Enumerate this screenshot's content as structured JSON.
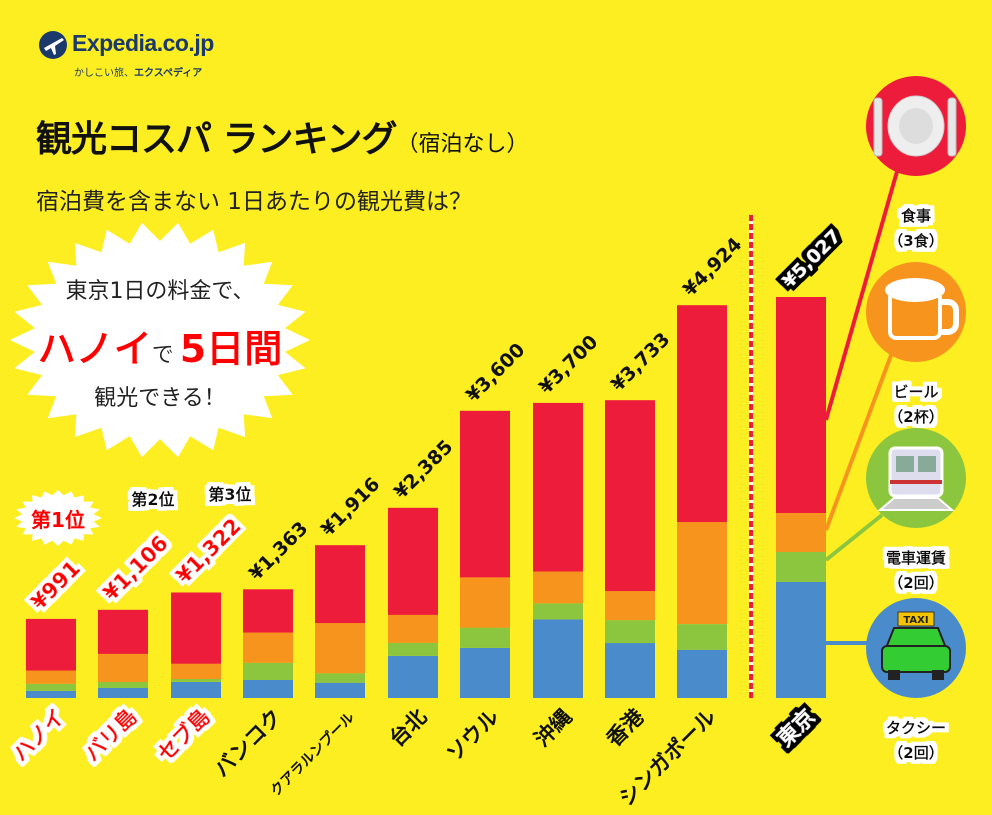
{
  "logo": {
    "brand": "Expedia.co.jp",
    "tagline_a": "かしこい旅、",
    "tagline_b": "エクスペディア"
  },
  "title": {
    "main": "観光コスパ ランキング",
    "suffix": "（宿泊なし）"
  },
  "subtitle": "宿泊費を含まない 1日あたりの観光費は？",
  "callout": {
    "line1": "東京1日の料金で、",
    "line2_a": "ハノイ",
    "line2_b": "で",
    "line2_c": "5日間",
    "line3": "観光できる！"
  },
  "ranks": [
    "第1位",
    "第2位",
    "第3位"
  ],
  "colors": {
    "background": "#fcee21",
    "food": "#ed1c3a",
    "beer": "#f7941d",
    "train": "#8cc63f",
    "taxi": "#4a8ccb",
    "highlight": "#ff0000"
  },
  "legend": [
    {
      "label": "食事",
      "detail": "（3食）",
      "icon": "plate-fork-knife-icon",
      "color": "#ed1c3a"
    },
    {
      "label": "ビール",
      "detail": "（2杯）",
      "icon": "beer-mug-icon",
      "color": "#f7941d"
    },
    {
      "label": "電車運賃",
      "detail": "（2回）",
      "icon": "train-icon",
      "color": "#8cc63f"
    },
    {
      "label": "タクシー",
      "detail": "（2回）",
      "icon": "taxi-icon",
      "color": "#4a8ccb"
    }
  ],
  "chart_data": {
    "type": "bar",
    "stacked": true,
    "title": "観光コスパ ランキング（宿泊なし）",
    "categories": [
      "ハノイ",
      "バリ島",
      "セブ島",
      "バンコク",
      "クアラルンプール",
      "台北",
      "ソウル",
      "沖縄",
      "香港",
      "シンガポール",
      "東京"
    ],
    "totals": [
      "¥991",
      "¥1,106",
      "¥1,322",
      "¥1,363",
      "¥1,916",
      "¥2,385",
      "¥3,600",
      "¥3,700",
      "¥3,733",
      "¥4,924",
      "¥5,027"
    ],
    "total_values": [
      991,
      1106,
      1322,
      1363,
      1916,
      2385,
      3600,
      3700,
      3733,
      4924,
      5027
    ],
    "series": [
      {
        "name": "タクシー",
        "color": "#4a8ccb",
        "values": [
          89,
          126,
          201,
          226,
          192,
          528,
          628,
          987,
          689,
          605,
          1454
        ]
      },
      {
        "name": "電車運賃",
        "color": "#8cc63f",
        "values": [
          89,
          75,
          38,
          215,
          118,
          163,
          254,
          200,
          288,
          322,
          376
        ]
      },
      {
        "name": "ビール",
        "color": "#f7941d",
        "values": [
          165,
          352,
          189,
          379,
          629,
          351,
          630,
          400,
          363,
          1278,
          489
        ]
      },
      {
        "name": "食事",
        "color": "#ed1c3a",
        "values": [
          648,
          553,
          894,
          543,
          977,
          1343,
          2088,
          2113,
          2393,
          2719,
          2708
        ]
      }
    ],
    "highlighted": [
      "ハノイ",
      "バリ島",
      "セブ島"
    ],
    "reference": "東京",
    "ylim": [
      0,
      5027
    ],
    "grid": false,
    "axis_visible": false
  }
}
